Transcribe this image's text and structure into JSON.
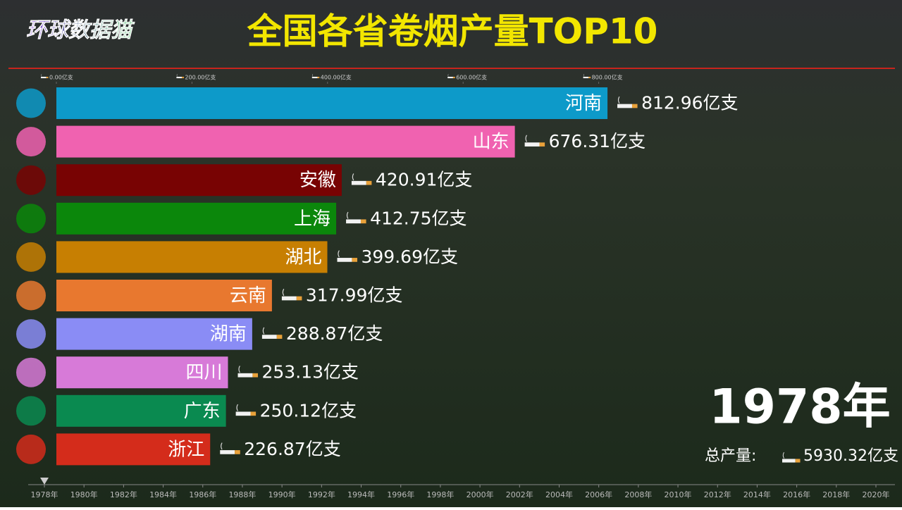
{
  "logo": "环球数据猫",
  "chart_data": {
    "type": "hbar",
    "title": "全国各省卷烟产量TOP10",
    "categories": [
      "河南",
      "山东",
      "安徽",
      "上海",
      "湖北",
      "云南",
      "湖南",
      "四川",
      "广东",
      "浙江"
    ],
    "values": [
      812.96,
      676.31,
      420.91,
      412.75,
      399.69,
      317.99,
      288.87,
      253.13,
      250.12,
      226.87
    ],
    "value_labels": [
      "812.96亿支",
      "676.31亿支",
      "420.91亿支",
      "412.75亿支",
      "399.69亿支",
      "317.99亿支",
      "288.87亿支",
      "253.13亿支",
      "250.12亿支",
      "226.87亿支"
    ],
    "colors": [
      "#0d9ac9",
      "#f062b0",
      "#780303",
      "#0b870b",
      "#c77f02",
      "#e8782f",
      "#8a8cf5",
      "#d77ad8",
      "#0a8a50",
      "#d42c1b"
    ],
    "xlim": [
      0,
      1000
    ],
    "xticks": [
      {
        "value": 0,
        "label": "0.00亿支"
      },
      {
        "value": 200,
        "label": "200.00亿支"
      },
      {
        "value": 400,
        "label": "400.00亿支"
      },
      {
        "value": 600,
        "label": "600.00亿支"
      },
      {
        "value": 800,
        "label": "800.00亿支"
      }
    ],
    "year": "1978年",
    "total_label": "总产量:",
    "total": "5930.32亿支",
    "timeline": {
      "xlim": [
        1978,
        2020
      ],
      "current": 1978,
      "xticks": [
        {
          "value": 1978,
          "label": "1978年"
        },
        {
          "value": 1980,
          "label": "1980年"
        },
        {
          "value": 1982,
          "label": "1982年"
        },
        {
          "value": 1984,
          "label": "1984年"
        },
        {
          "value": 1986,
          "label": "1986年"
        },
        {
          "value": 1988,
          "label": "1988年"
        },
        {
          "value": 1990,
          "label": "1990年"
        },
        {
          "value": 1992,
          "label": "1992年"
        },
        {
          "value": 1994,
          "label": "1994年"
        },
        {
          "value": 1996,
          "label": "1996年"
        },
        {
          "value": 1998,
          "label": "1998年"
        },
        {
          "value": 2000,
          "label": "2000年"
        },
        {
          "value": 2002,
          "label": "2002年"
        },
        {
          "value": 2004,
          "label": "2004年"
        },
        {
          "value": 2006,
          "label": "2006年"
        },
        {
          "value": 2008,
          "label": "2008年"
        },
        {
          "value": 2010,
          "label": "2010年"
        },
        {
          "value": 2012,
          "label": "2012年"
        },
        {
          "value": 2014,
          "label": "2014年"
        },
        {
          "value": 2016,
          "label": "2016年"
        },
        {
          "value": 2018,
          "label": "2018年"
        },
        {
          "value": 2020,
          "label": "2020年"
        }
      ]
    }
  }
}
